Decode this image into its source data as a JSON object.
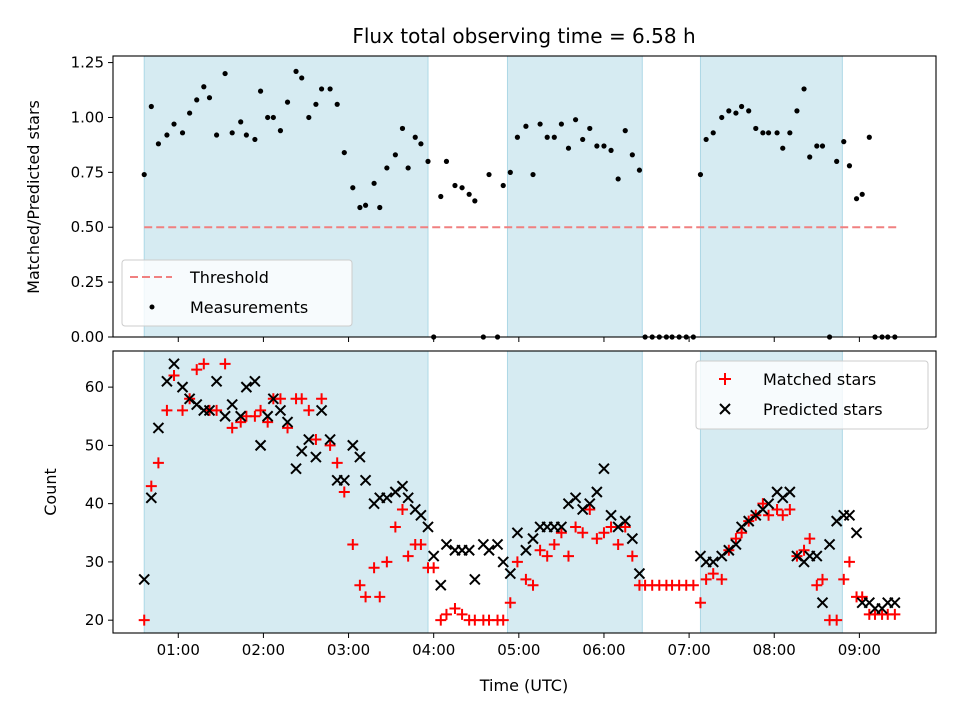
{
  "chart_data": [
    {
      "type": "scatter",
      "title": "Flux total observing time = 6.58 h",
      "xlabel": "",
      "ylabel": "Matched/Predicted stars",
      "xlim": [
        "00:14",
        "09:54"
      ],
      "ylim": [
        0,
        1.28
      ],
      "yticks": [
        0.0,
        0.25,
        0.5,
        0.75,
        1.0,
        1.25
      ],
      "xticks": [
        "01:00",
        "02:00",
        "03:00",
        "04:00",
        "05:00",
        "06:00",
        "07:00",
        "08:00",
        "09:00"
      ],
      "observing_windows": [
        [
          "00:36",
          "03:56"
        ],
        [
          "04:52",
          "06:27"
        ],
        [
          "07:08",
          "08:48"
        ]
      ],
      "threshold": {
        "value": 0.5,
        "x_range": [
          "00:36",
          "09:26"
        ],
        "color": "#f08080"
      },
      "legend": {
        "position": "lower-left",
        "entries": [
          "Threshold",
          "Measurements"
        ]
      },
      "series": [
        {
          "name": "Measurements",
          "color": "#000000",
          "x": [
            "00:36",
            "00:41",
            "00:46",
            "00:52",
            "00:57",
            "01:03",
            "01:08",
            "01:13",
            "01:18",
            "01:22",
            "01:27",
            "01:33",
            "01:38",
            "01:44",
            "01:48",
            "01:54",
            "01:58",
            "02:03",
            "02:07",
            "02:12",
            "02:17",
            "02:23",
            "02:27",
            "02:32",
            "02:37",
            "02:41",
            "02:47",
            "02:52",
            "02:57",
            "03:03",
            "03:08",
            "03:12",
            "03:18",
            "03:22",
            "03:27",
            "03:33",
            "03:38",
            "03:42",
            "03:47",
            "03:51",
            "03:56",
            "04:00",
            "04:05",
            "04:09",
            "04:15",
            "04:20",
            "04:25",
            "04:29",
            "04:35",
            "04:39",
            "04:45",
            "04:49",
            "04:54",
            "04:59",
            "05:05",
            "05:10",
            "05:15",
            "05:20",
            "05:25",
            "05:30",
            "05:35",
            "05:40",
            "05:45",
            "05:50",
            "05:55",
            "06:00",
            "06:05",
            "06:10",
            "06:15",
            "06:20",
            "06:25",
            "06:29",
            "06:34",
            "06:39",
            "06:44",
            "06:48",
            "06:53",
            "06:58",
            "07:03",
            "07:08",
            "07:12",
            "07:17",
            "07:23",
            "07:28",
            "07:33",
            "07:37",
            "07:42",
            "07:47",
            "07:52",
            "07:56",
            "08:02",
            "08:06",
            "08:11",
            "08:16",
            "08:21",
            "08:25",
            "08:30",
            "08:34",
            "08:39",
            "08:44",
            "08:49",
            "08:53",
            "08:58",
            "09:02",
            "09:07",
            "09:11",
            "09:16",
            "09:20",
            "09:25"
          ],
          "y": [
            0.74,
            1.05,
            0.88,
            0.92,
            0.97,
            0.93,
            1.02,
            1.08,
            1.14,
            1.09,
            0.92,
            1.2,
            0.93,
            0.98,
            0.92,
            0.9,
            1.12,
            1.0,
            1.0,
            0.94,
            1.07,
            1.21,
            1.18,
            1.0,
            1.06,
            1.13,
            1.13,
            1.06,
            0.84,
            0.68,
            0.59,
            0.6,
            0.7,
            0.59,
            0.77,
            0.83,
            0.95,
            0.77,
            0.91,
            0.88,
            0.8,
            0.0,
            0.64,
            0.8,
            0.69,
            0.68,
            0.65,
            0.62,
            0.0,
            0.74,
            0.0,
            0.69,
            0.75,
            0.91,
            0.96,
            0.74,
            0.97,
            0.91,
            0.91,
            0.97,
            0.86,
            0.99,
            0.9,
            0.95,
            0.87,
            0.87,
            0.85,
            0.72,
            0.94,
            0.83,
            0.76,
            0.0,
            0.0,
            0.0,
            0.0,
            0.0,
            0.0,
            0.0,
            0.0,
            0.74,
            0.9,
            0.93,
            1.0,
            1.03,
            1.02,
            1.05,
            1.03,
            0.95,
            0.93,
            0.93,
            0.93,
            0.86,
            0.93,
            1.03,
            1.13,
            0.82,
            0.87,
            0.87,
            0.0,
            0.8,
            0.89,
            0.78,
            0.63,
            0.65,
            0.91,
            0.0,
            0.0,
            0.0,
            0.0
          ]
        }
      ]
    },
    {
      "type": "scatter",
      "title": "",
      "xlabel": "Time (UTC)",
      "ylabel": "Count",
      "xlim": [
        "00:14",
        "09:54"
      ],
      "ylim": [
        17.8,
        66.2
      ],
      "yticks": [
        20,
        30,
        40,
        50,
        60
      ],
      "xticks": [
        "01:00",
        "02:00",
        "03:00",
        "04:00",
        "05:00",
        "06:00",
        "07:00",
        "08:00",
        "09:00"
      ],
      "observing_windows": [
        [
          "00:36",
          "03:56"
        ],
        [
          "04:52",
          "06:27"
        ],
        [
          "07:08",
          "08:48"
        ]
      ],
      "legend": {
        "position": "top-right",
        "entries": [
          "Matched stars",
          "Predicted stars"
        ]
      },
      "series": [
        {
          "name": "Matched stars",
          "marker": "plus",
          "color": "#ff0000",
          "x": [
            "00:36",
            "00:41",
            "00:46",
            "00:52",
            "00:57",
            "01:03",
            "01:08",
            "01:13",
            "01:18",
            "01:22",
            "01:27",
            "01:33",
            "01:38",
            "01:44",
            "01:48",
            "01:54",
            "01:58",
            "02:03",
            "02:07",
            "02:12",
            "02:17",
            "02:23",
            "02:27",
            "02:32",
            "02:37",
            "02:41",
            "02:47",
            "02:52",
            "02:57",
            "03:03",
            "03:08",
            "03:12",
            "03:18",
            "03:22",
            "03:27",
            "03:33",
            "03:38",
            "03:42",
            "03:47",
            "03:51",
            "03:56",
            "04:00",
            "04:05",
            "04:09",
            "04:15",
            "04:20",
            "04:25",
            "04:29",
            "04:35",
            "04:39",
            "04:45",
            "04:49",
            "04:54",
            "04:59",
            "05:05",
            "05:10",
            "05:15",
            "05:20",
            "05:25",
            "05:30",
            "05:35",
            "05:40",
            "05:45",
            "05:50",
            "05:55",
            "06:00",
            "06:05",
            "06:10",
            "06:15",
            "06:20",
            "06:25",
            "06:29",
            "06:34",
            "06:39",
            "06:44",
            "06:48",
            "06:53",
            "06:58",
            "07:03",
            "07:08",
            "07:12",
            "07:17",
            "07:23",
            "07:28",
            "07:33",
            "07:37",
            "07:42",
            "07:47",
            "07:52",
            "07:56",
            "08:02",
            "08:06",
            "08:11",
            "08:16",
            "08:21",
            "08:25",
            "08:30",
            "08:34",
            "08:39",
            "08:44",
            "08:49",
            "08:53",
            "08:58",
            "09:02",
            "09:07",
            "09:11",
            "09:16",
            "09:20",
            "09:25"
          ],
          "y": [
            20,
            43,
            47,
            56,
            62,
            56,
            58,
            63,
            64,
            56,
            56,
            64,
            53,
            54,
            55,
            55,
            56,
            54,
            58,
            58,
            53,
            58,
            58,
            56,
            51,
            58,
            50,
            47,
            42,
            33,
            26,
            24,
            29,
            24,
            30,
            36,
            39,
            31,
            33,
            33,
            29,
            29,
            20,
            21,
            22,
            21,
            20,
            20,
            20,
            20,
            20,
            20,
            23,
            30,
            27,
            26,
            32,
            31,
            33,
            35,
            31,
            36,
            35,
            39,
            34,
            35,
            36,
            33,
            36,
            31,
            26,
            26,
            26,
            26,
            26,
            26,
            26,
            26,
            26,
            23,
            27,
            28,
            27,
            32,
            34,
            35,
            37,
            38,
            40,
            38,
            39,
            38,
            39,
            31,
            32,
            34,
            26,
            27,
            20,
            20,
            27,
            30,
            24,
            24,
            21,
            21,
            21,
            21,
            21
          ]
        },
        {
          "name": "Predicted stars",
          "marker": "x",
          "color": "#000000",
          "x": [
            "00:36",
            "00:41",
            "00:46",
            "00:52",
            "00:57",
            "01:03",
            "01:08",
            "01:13",
            "01:18",
            "01:22",
            "01:27",
            "01:33",
            "01:38",
            "01:44",
            "01:48",
            "01:54",
            "01:58",
            "02:03",
            "02:07",
            "02:12",
            "02:17",
            "02:23",
            "02:27",
            "02:32",
            "02:37",
            "02:41",
            "02:47",
            "02:52",
            "02:57",
            "03:03",
            "03:08",
            "03:12",
            "03:18",
            "03:22",
            "03:27",
            "03:33",
            "03:38",
            "03:42",
            "03:47",
            "03:51",
            "03:56",
            "04:00",
            "04:05",
            "04:09",
            "04:15",
            "04:20",
            "04:25",
            "04:29",
            "04:35",
            "04:39",
            "04:45",
            "04:49",
            "04:54",
            "04:59",
            "05:05",
            "05:10",
            "05:15",
            "05:20",
            "05:25",
            "05:30",
            "05:35",
            "05:40",
            "05:45",
            "05:50",
            "05:55",
            "06:00",
            "06:05",
            "06:10",
            "06:15",
            "06:20",
            "06:25",
            "07:08",
            "07:12",
            "07:17",
            "07:23",
            "07:28",
            "07:33",
            "07:37",
            "07:42",
            "07:47",
            "07:52",
            "07:56",
            "08:02",
            "08:06",
            "08:11",
            "08:16",
            "08:21",
            "08:25",
            "08:30",
            "08:34",
            "08:39",
            "08:44",
            "08:49",
            "08:53",
            "08:58",
            "09:02",
            "09:07",
            "09:11",
            "09:16",
            "09:20",
            "09:25"
          ],
          "y": [
            27,
            41,
            53,
            61,
            64,
            60,
            58,
            57,
            56,
            56,
            61,
            55,
            57,
            55,
            60,
            61,
            50,
            55,
            58,
            56,
            54,
            46,
            49,
            51,
            48,
            56,
            51,
            44,
            44,
            50,
            48,
            44,
            40,
            41,
            41,
            42,
            43,
            41,
            39,
            38,
            36,
            31,
            26,
            33,
            32,
            32,
            32,
            27,
            33,
            32,
            33,
            30,
            28,
            35,
            32,
            34,
            36,
            36,
            36,
            36,
            40,
            41,
            39,
            40,
            42,
            46,
            38,
            36,
            37,
            34,
            28,
            31,
            30,
            30,
            31,
            32,
            33,
            36,
            37,
            38,
            39,
            40,
            42,
            41,
            42,
            31,
            30,
            31,
            31,
            23,
            33,
            37,
            38,
            38,
            35,
            23,
            23,
            22,
            22,
            23,
            23
          ]
        }
      ]
    }
  ]
}
